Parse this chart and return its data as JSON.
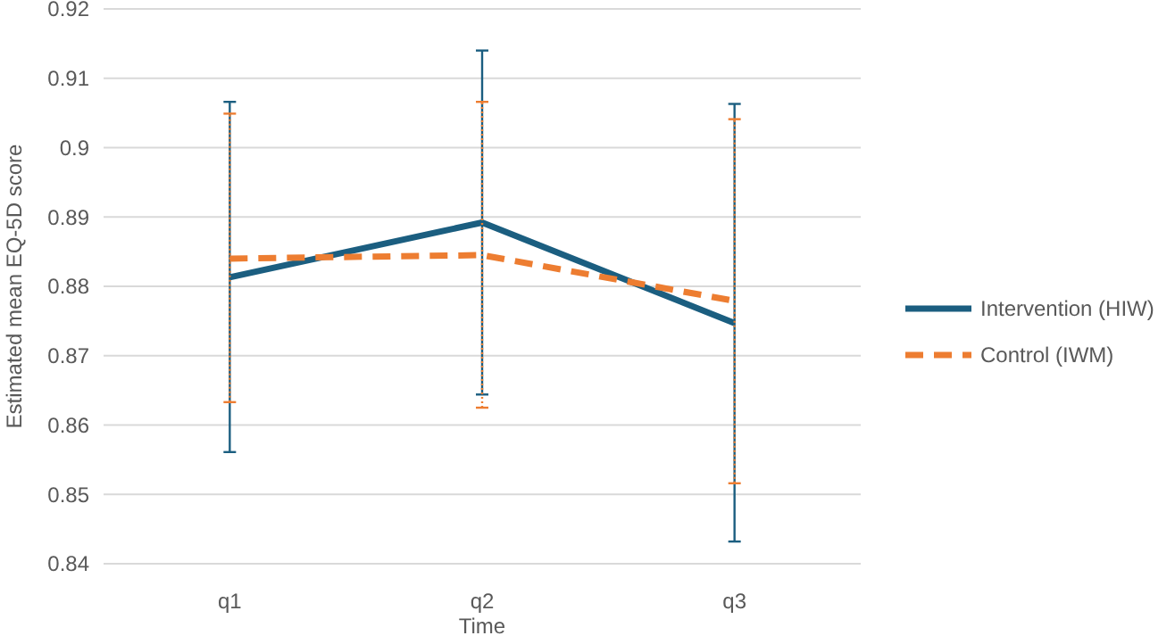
{
  "chart_data": {
    "type": "line",
    "xlabel": "Time",
    "ylabel": "Estimated mean EQ-5D score",
    "categories": [
      "q1",
      "q2",
      "q3"
    ],
    "series": [
      {
        "name": "Intervention (HIW)",
        "color": "#1b5e80",
        "values": [
          0.8813,
          0.8892,
          0.8747
        ],
        "errors": [
          [
            0.8561,
            0.9066
          ],
          [
            0.8644,
            0.914
          ],
          [
            0.8432,
            0.9063
          ]
        ],
        "line_style": "solid"
      },
      {
        "name": "Control (IWM)",
        "color": "#ed7d31",
        "values": [
          0.884,
          0.8845,
          0.8779
        ],
        "errors": [
          [
            0.8633,
            0.9049
          ],
          [
            0.8625,
            0.9066
          ],
          [
            0.8516,
            0.9041
          ]
        ],
        "line_style": "dashed"
      }
    ],
    "ylim": [
      0.84,
      0.92
    ],
    "yticks": [
      0.84,
      0.85,
      0.86,
      0.87,
      0.88,
      0.89,
      0.9,
      0.91,
      0.92
    ],
    "grid": "y",
    "legend": "right",
    "marker": "none"
  }
}
